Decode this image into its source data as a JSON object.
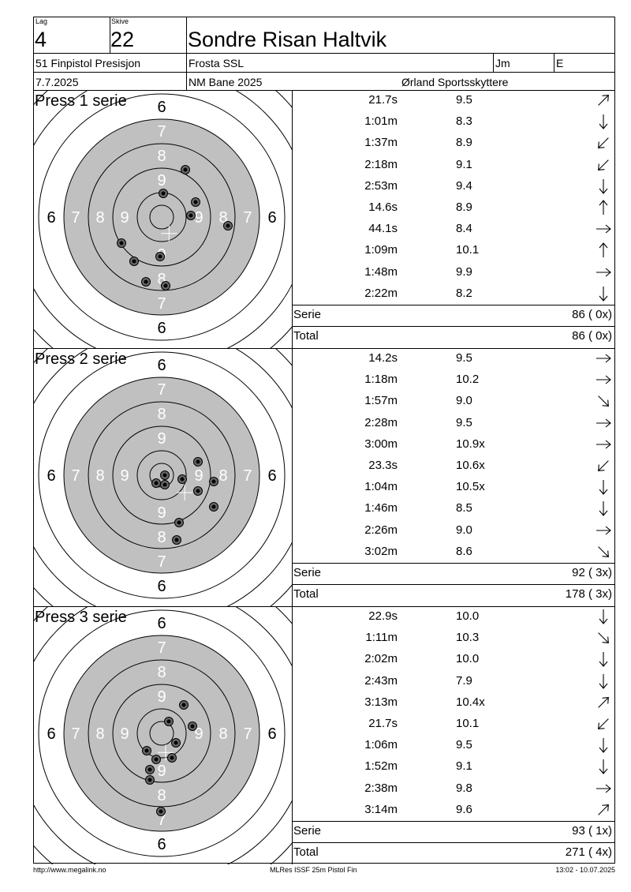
{
  "header": {
    "lag_label": "Lag",
    "lag_value": "4",
    "skive_label": "Skive",
    "skive_value": "22",
    "shooter_name": "Sondre Risan Haltvik",
    "event": "51 Finpistol Presisjon",
    "club": "Frosta SSL",
    "class": "Jm",
    "class2": "E",
    "date": "7.7.2025",
    "competition": "NM Bane 2025",
    "organizer": "Ørland Sportsskyttere"
  },
  "target_ring_labels": {
    "r6": "6",
    "r7": "7",
    "r8": "8",
    "r9": "9"
  },
  "series": [
    {
      "title": "Press 1 serie",
      "shots": [
        {
          "time": "21.7s",
          "score": "9.5",
          "dir": "ne"
        },
        {
          "time": "1:01m",
          "score": "8.3",
          "dir": "s"
        },
        {
          "time": "1:37m",
          "score": "8.9",
          "dir": "sw"
        },
        {
          "time": "2:18m",
          "score": "9.1",
          "dir": "sw"
        },
        {
          "time": "2:53m",
          "score": "9.4",
          "dir": "s"
        },
        {
          "time": "14.6s",
          "score": "8.9",
          "dir": "n"
        },
        {
          "time": "44.1s",
          "score": "8.4",
          "dir": "e"
        },
        {
          "time": "1:09m",
          "score": "10.1",
          "dir": "n"
        },
        {
          "time": "1:48m",
          "score": "9.9",
          "dir": "e"
        },
        {
          "time": "2:22m",
          "score": "8.2",
          "dir": "s"
        }
      ],
      "hits": [
        [
          30,
          -60
        ],
        [
          2,
          -30
        ],
        [
          43,
          -19
        ],
        [
          37,
          -2
        ],
        [
          84,
          11
        ],
        [
          -51,
          33
        ],
        [
          -35,
          56
        ],
        [
          -2,
          50
        ],
        [
          -20,
          82
        ],
        [
          5,
          87
        ]
      ],
      "serie_label": "Serie",
      "serie_value": "86 ( 0x)",
      "total_label": "Total",
      "total_value": "86 ( 0x)"
    },
    {
      "title": "Press 2 serie",
      "shots": [
        {
          "time": "14.2s",
          "score": "9.5",
          "dir": "e"
        },
        {
          "time": "1:18m",
          "score": "10.2",
          "dir": "e"
        },
        {
          "time": "1:57m",
          "score": "9.0",
          "dir": "se"
        },
        {
          "time": "2:28m",
          "score": "9.5",
          "dir": "e"
        },
        {
          "time": "3:00m",
          "score": "10.9x",
          "dir": "e"
        },
        {
          "time": "23.3s",
          "score": "10.6x",
          "dir": "sw"
        },
        {
          "time": "1:04m",
          "score": "10.5x",
          "dir": "s"
        },
        {
          "time": "1:46m",
          "score": "8.5",
          "dir": "s"
        },
        {
          "time": "2:26m",
          "score": "9.0",
          "dir": "e"
        },
        {
          "time": "3:02m",
          "score": "8.6",
          "dir": "se"
        }
      ],
      "hits": [
        [
          46,
          -17
        ],
        [
          4,
          0
        ],
        [
          -7,
          10
        ],
        [
          4,
          12
        ],
        [
          26,
          5
        ],
        [
          66,
          8
        ],
        [
          46,
          20
        ],
        [
          66,
          40
        ],
        [
          22,
          60
        ],
        [
          19,
          82
        ]
      ],
      "serie_label": "Serie",
      "serie_value": "92 ( 3x)",
      "total_label": "Total",
      "total_value": "178 ( 3x)"
    },
    {
      "title": "Press 3 serie",
      "shots": [
        {
          "time": "22.9s",
          "score": "10.0",
          "dir": "s"
        },
        {
          "time": "1:11m",
          "score": "10.3",
          "dir": "se"
        },
        {
          "time": "2:02m",
          "score": "10.0",
          "dir": "s"
        },
        {
          "time": "2:43m",
          "score": "7.9",
          "dir": "s"
        },
        {
          "time": "3:13m",
          "score": "10.4x",
          "dir": "ne"
        },
        {
          "time": "21.7s",
          "score": "10.1",
          "dir": "sw"
        },
        {
          "time": "1:06m",
          "score": "9.5",
          "dir": "s"
        },
        {
          "time": "1:52m",
          "score": "9.1",
          "dir": "s"
        },
        {
          "time": "2:38m",
          "score": "9.8",
          "dir": "e"
        },
        {
          "time": "3:14m",
          "score": "9.6",
          "dir": "ne"
        }
      ],
      "hits": [
        [
          28,
          -36
        ],
        [
          9,
          -15
        ],
        [
          39,
          -9
        ],
        [
          18,
          12
        ],
        [
          -19,
          22
        ],
        [
          -7,
          33
        ],
        [
          13,
          31
        ],
        [
          -15,
          46
        ],
        [
          -15,
          59
        ],
        [
          -1,
          99
        ]
      ],
      "serie_label": "Serie",
      "serie_value": "93 ( 1x)",
      "total_label": "Total",
      "total_value": "271 ( 4x)"
    }
  ],
  "footer": {
    "left": "http://www.megalink.no",
    "center": "MLRes ISSF 25m Pistol Fin",
    "right": "13:02 - 10.07.2025"
  }
}
